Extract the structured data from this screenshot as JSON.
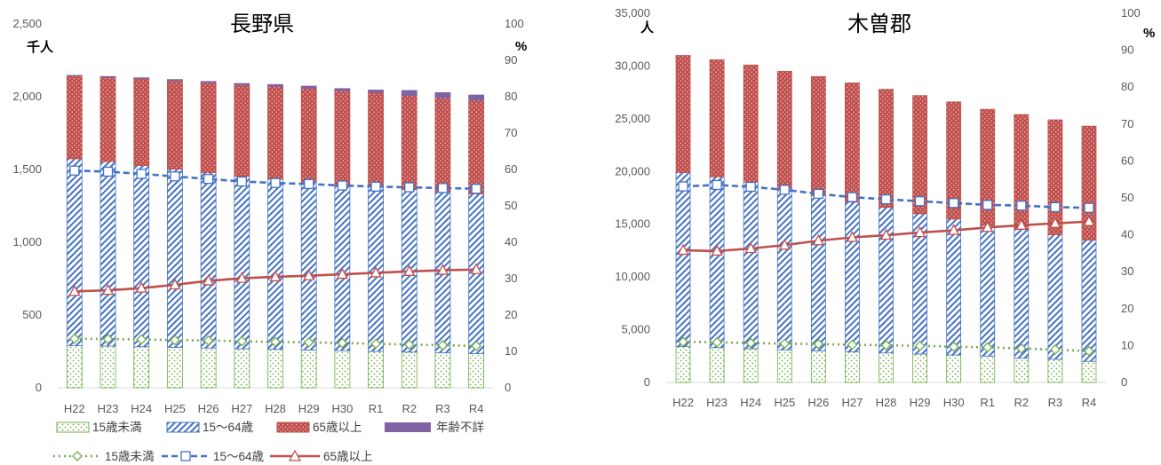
{
  "colors": {
    "age0_14": "#70ad47",
    "age15_64": "#4472c4",
    "age65": "#c0504d",
    "unknown": "#8064a2",
    "gridline": "#d9d9d9"
  },
  "legend": {
    "bars": [
      {
        "key": "age0_14",
        "label": "15歳未満",
        "style": "dotted-green"
      },
      {
        "key": "age15_64",
        "label": "15～64歳",
        "style": "hatched-blue"
      },
      {
        "key": "age65",
        "label": "65歳以上",
        "style": "dotted-red"
      },
      {
        "key": "unknown",
        "label": "年齢不詳",
        "style": "solid-purple"
      }
    ],
    "lines": [
      {
        "key": "age0_14",
        "label": "15歳未満",
        "marker": "diamond"
      },
      {
        "key": "age15_64",
        "label": "15～64歳",
        "marker": "square"
      },
      {
        "key": "age65",
        "label": "65歳以上",
        "marker": "triangle"
      }
    ]
  },
  "chart_data": [
    {
      "type": "bar",
      "subtype": "stacked-bar-with-lines",
      "title": "長野県",
      "y_left_unit": "千人",
      "y_right_unit": "%",
      "ylim_left": [
        0,
        2500
      ],
      "ylim_right": [
        0,
        100
      ],
      "left_ticks": [
        "0",
        "500",
        "1,000",
        "1,500",
        "2,000",
        "2,500"
      ],
      "right_ticks": [
        "0",
        "10",
        "20",
        "30",
        "40",
        "50",
        "60",
        "70",
        "80",
        "90",
        "100"
      ],
      "categories": [
        "H22",
        "H23",
        "H24",
        "H25",
        "H26",
        "H27",
        "H28",
        "H29",
        "H30",
        "R1",
        "R2",
        "R3",
        "R4"
      ],
      "bar_series": [
        {
          "key": "age0_14",
          "name": "15歳未満",
          "values": [
            289,
            286,
            282,
            278,
            273,
            268,
            264,
            260,
            255,
            250,
            245,
            240,
            235
          ]
        },
        {
          "key": "age15_64",
          "name": "15～64歳",
          "values": [
            1285,
            1268,
            1245,
            1225,
            1205,
            1185,
            1170,
            1155,
            1140,
            1128,
            1118,
            1108,
            1098
          ]
        },
        {
          "key": "age65",
          "name": "65歳以上",
          "values": [
            570,
            580,
            597,
            608,
            619,
            627,
            637,
            643,
            645,
            651,
            645,
            645,
            642
          ]
        },
        {
          "key": "unknown",
          "name": "年齢不詳",
          "values": [
            3,
            5,
            6,
            7,
            8,
            11,
            13,
            15,
            16,
            17,
            35,
            35,
            37
          ]
        }
      ],
      "line_series": [
        {
          "key": "age0_14",
          "name": "15歳未満",
          "values": [
            13.5,
            13.4,
            13.3,
            13.1,
            13.0,
            12.8,
            12.6,
            12.5,
            12.3,
            12.1,
            11.9,
            11.7,
            11.5
          ]
        },
        {
          "key": "age15_64",
          "name": "15～64歳",
          "values": [
            59.7,
            59.4,
            58.8,
            58.1,
            57.4,
            56.7,
            56.3,
            56.0,
            55.6,
            55.3,
            55.1,
            54.9,
            54.7
          ]
        },
        {
          "key": "age65",
          "name": "65歳以上",
          "values": [
            26.5,
            26.8,
            27.4,
            28.3,
            29.4,
            30.1,
            30.5,
            30.8,
            31.2,
            31.6,
            32.0,
            32.3,
            32.5
          ]
        }
      ]
    },
    {
      "type": "bar",
      "subtype": "stacked-bar-with-lines",
      "title": "木曽郡",
      "y_left_unit": "人",
      "y_right_unit": "%",
      "ylim_left": [
        0,
        35000
      ],
      "ylim_right": [
        0,
        100
      ],
      "left_ticks": [
        "0",
        "5,000",
        "10,000",
        "15,000",
        "20,000",
        "25,000",
        "30,000",
        "35,000"
      ],
      "right_ticks": [
        "0",
        "10",
        "20",
        "30",
        "40",
        "50",
        "60",
        "70",
        "80",
        "90",
        "100"
      ],
      "categories": [
        "H22",
        "H23",
        "H24",
        "H25",
        "H26",
        "H27",
        "H28",
        "H29",
        "H30",
        "R1",
        "R2",
        "R3",
        "R4"
      ],
      "bar_series": [
        {
          "key": "age0_14",
          "name": "15歳未満",
          "values": [
            3400,
            3300,
            3200,
            3100,
            3000,
            2900,
            2800,
            2700,
            2600,
            2500,
            2300,
            2200,
            2000
          ]
        },
        {
          "key": "age15_64",
          "name": "15～64歳",
          "values": [
            16500,
            16200,
            15800,
            15300,
            14700,
            14200,
            13800,
            13300,
            12900,
            12400,
            12200,
            11800,
            11500
          ]
        },
        {
          "key": "age65",
          "name": "65歳以上",
          "values": [
            11100,
            11100,
            11100,
            11100,
            11300,
            11300,
            11200,
            11200,
            11100,
            11000,
            10900,
            10900,
            10800
          ]
        },
        {
          "key": "unknown",
          "name": "年齢不詳",
          "values": [
            0,
            0,
            0,
            0,
            0,
            0,
            0,
            0,
            0,
            0,
            0,
            0,
            0
          ]
        }
      ],
      "line_series": [
        {
          "key": "age0_14",
          "name": "15歳未満",
          "values": [
            11.0,
            10.9,
            10.7,
            10.5,
            10.4,
            10.2,
            10.1,
            9.9,
            9.7,
            9.5,
            9.2,
            8.9,
            8.5
          ]
        },
        {
          "key": "age15_64",
          "name": "15～64歳",
          "values": [
            53.1,
            53.5,
            53.0,
            52.2,
            51.1,
            50.2,
            49.6,
            49.1,
            48.6,
            48.1,
            47.9,
            47.5,
            47.3
          ]
        },
        {
          "key": "age65",
          "name": "65歳以上",
          "values": [
            35.8,
            35.6,
            36.3,
            37.2,
            38.4,
            39.3,
            39.9,
            40.6,
            41.2,
            42.0,
            42.6,
            43.1,
            43.6
          ]
        }
      ]
    }
  ]
}
